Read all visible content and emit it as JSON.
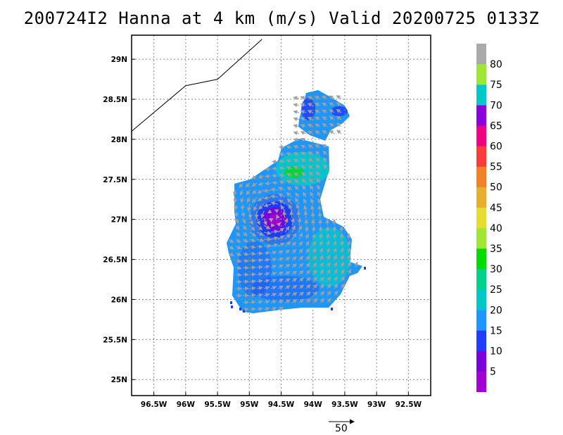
{
  "title": "200724I2 Hanna at 4 km (m/s) Valid 20200725 0133Z",
  "map": {
    "lat_range": [
      24.8,
      29.3
    ],
    "lon_range": [
      -96.85,
      -92.15
    ],
    "lat_ticks": [
      {
        "value": 29.0,
        "label": "29N"
      },
      {
        "value": 28.5,
        "label": "28.5N"
      },
      {
        "value": 28.0,
        "label": "28N"
      },
      {
        "value": 27.5,
        "label": "27.5N"
      },
      {
        "value": 27.0,
        "label": "27N"
      },
      {
        "value": 26.5,
        "label": "26.5N"
      },
      {
        "value": 26.0,
        "label": "26N"
      },
      {
        "value": 25.5,
        "label": "25.5N"
      },
      {
        "value": 25.0,
        "label": "25N"
      }
    ],
    "lon_ticks": [
      {
        "value": -96.5,
        "label": "96.5W"
      },
      {
        "value": -96.0,
        "label": "96W"
      },
      {
        "value": -95.5,
        "label": "95.5W"
      },
      {
        "value": -95.0,
        "label": "95W"
      },
      {
        "value": -94.5,
        "label": "94.5W"
      },
      {
        "value": -94.0,
        "label": "94W"
      },
      {
        "value": -93.5,
        "label": "93.5W"
      },
      {
        "value": -93.0,
        "label": "93W"
      },
      {
        "value": -92.5,
        "label": "92.5W"
      }
    ],
    "grid": true,
    "coastline": [
      [
        -96.85,
        28.1
      ],
      [
        -96.0,
        28.67
      ],
      [
        -95.5,
        28.75
      ],
      [
        -94.8,
        29.25
      ]
    ],
    "storm_center": {
      "lon": -94.6,
      "lat": 27.0
    }
  },
  "colorbar": {
    "labels": [
      "5",
      "10",
      "15",
      "20",
      "25",
      "30",
      "35",
      "40",
      "45",
      "50",
      "55",
      "60",
      "65",
      "70",
      "75",
      "80"
    ],
    "colors": [
      "#a000d0",
      "#7a00dc",
      "#1e3cff",
      "#1e96ff",
      "#00c8c8",
      "#00d28c",
      "#00dc00",
      "#a0e632",
      "#e6dc32",
      "#e6af2d",
      "#f08228",
      "#fa3c3c",
      "#f00082",
      "#8c00dc",
      "#00c8c8",
      "#a0e632",
      "#aaaaaa"
    ]
  },
  "reference_vector": {
    "label": "50"
  }
}
